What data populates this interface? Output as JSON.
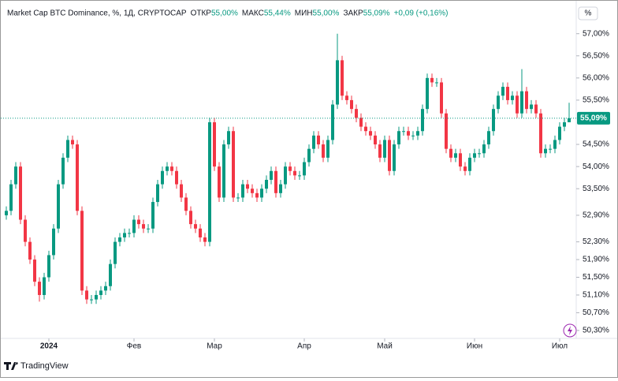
{
  "chart_data": {
    "type": "candlestick",
    "header": {
      "symbol": "Market Cap BTC Dominance, %, 1Д, CRYPTOCAP",
      "open_label": "ОТКР",
      "open_text": "55,00%",
      "high_label": "МАКС",
      "high_text": "55,44%",
      "low_label": "МИН",
      "low_text": "55,00%",
      "close_label": "ЗАКР",
      "close_text": "55,09%",
      "change_text": "+0,09 (+0,16%)"
    },
    "scale_button": "%",
    "brand": "TradingView",
    "last_value_label": "55,09%",
    "up_color": "#089981",
    "down_color": "#f23645",
    "ylim": [
      50.12,
      57.6
    ],
    "yticks": [
      {
        "value": 57,
        "label": "57,00%"
      },
      {
        "value": 56.5,
        "label": "56,50%"
      },
      {
        "value": 56,
        "label": "56,00%"
      },
      {
        "value": 55.5,
        "label": "55,50%"
      },
      {
        "value": 54.5,
        "label": "54,50%"
      },
      {
        "value": 54,
        "label": "54,00%"
      },
      {
        "value": 53.5,
        "label": "53,50%"
      },
      {
        "value": 52.9,
        "label": "52,90%"
      },
      {
        "value": 52.3,
        "label": "52,30%"
      },
      {
        "value": 51.9,
        "label": "51,90%"
      },
      {
        "value": 51.5,
        "label": "51,50%"
      },
      {
        "value": 51.1,
        "label": "51,10%"
      },
      {
        "value": 50.7,
        "label": "50,70%"
      },
      {
        "value": 50.3,
        "label": "50,30%"
      }
    ],
    "xticks": [
      {
        "value": 9,
        "label": "2024"
      },
      {
        "value": 27,
        "label": "Фев"
      },
      {
        "value": 44,
        "label": "Мар"
      },
      {
        "value": 63,
        "label": "Апр"
      },
      {
        "value": 80,
        "label": "Май"
      },
      {
        "value": 99,
        "label": "Июн"
      },
      {
        "value": 117,
        "label": "Июл"
      }
    ],
    "open": [
      52.9,
      53.0,
      53.6,
      54.0,
      52.8,
      52.3,
      51.9,
      51.4,
      51.1,
      51.5,
      52.0,
      52.6,
      53.6,
      54.2,
      54.6,
      54.5,
      53.0,
      51.2,
      51.0,
      51.0,
      51.1,
      51.2,
      51.3,
      51.8,
      52.3,
      52.4,
      52.5,
      52.5,
      52.8,
      52.7,
      52.6,
      52.6,
      53.2,
      53.6,
      53.9,
      54.0,
      53.9,
      53.6,
      53.3,
      53.0,
      52.7,
      52.6,
      52.4,
      52.3,
      55.0,
      54.0,
      53.3,
      54.5,
      54.8,
      53.3,
      53.3,
      53.6,
      53.5,
      53.4,
      53.3,
      53.5,
      53.7,
      53.9,
      53.4,
      53.6,
      54.0,
      53.9,
      53.8,
      53.8,
      54.1,
      54.4,
      54.7,
      54.5,
      54.2,
      54.6,
      55.4,
      56.4,
      55.6,
      55.5,
      55.3,
      55.1,
      54.9,
      54.8,
      54.7,
      54.5,
      54.2,
      54.6,
      53.9,
      54.5,
      54.8,
      54.8,
      54.7,
      54.7,
      54.8,
      55.3,
      56.0,
      55.9,
      55.9,
      55.2,
      54.4,
      54.2,
      54.3,
      54.0,
      53.9,
      54.2,
      54.3,
      54.3,
      54.5,
      54.8,
      55.3,
      55.6,
      55.8,
      55.5,
      55.6,
      55.2,
      55.7,
      55.3,
      55.4,
      55.2,
      54.3,
      54.4,
      54.4,
      54.6,
      54.9,
      55.0
    ],
    "high": [
      53.1,
      53.7,
      54.1,
      54.1,
      52.9,
      52.4,
      52.0,
      51.5,
      51.6,
      52.1,
      52.7,
      53.7,
      54.3,
      54.7,
      54.7,
      54.6,
      53.1,
      51.3,
      51.1,
      51.2,
      51.3,
      51.4,
      51.9,
      52.4,
      52.5,
      52.6,
      52.6,
      52.9,
      52.9,
      52.8,
      52.7,
      53.3,
      53.7,
      54.0,
      54.1,
      54.1,
      54.0,
      53.7,
      53.4,
      53.1,
      52.8,
      52.7,
      52.5,
      55.1,
      55.1,
      54.1,
      54.6,
      54.9,
      54.9,
      53.4,
      53.7,
      53.7,
      53.6,
      53.5,
      53.6,
      53.8,
      54.0,
      54.0,
      53.7,
      54.1,
      54.1,
      54.0,
      53.9,
      54.2,
      54.5,
      54.8,
      54.8,
      54.6,
      54.7,
      55.5,
      57.0,
      56.5,
      55.7,
      55.6,
      55.4,
      55.2,
      55.0,
      54.9,
      54.8,
      54.6,
      54.7,
      54.7,
      54.6,
      54.9,
      54.9,
      54.9,
      54.8,
      54.9,
      55.4,
      56.1,
      56.1,
      56.0,
      56.0,
      55.3,
      54.5,
      54.4,
      54.4,
      54.1,
      54.3,
      54.4,
      54.4,
      54.6,
      54.9,
      55.4,
      55.7,
      55.9,
      55.9,
      55.7,
      55.7,
      56.2,
      55.8,
      55.5,
      55.5,
      55.3,
      54.5,
      54.5,
      54.7,
      55.0,
      55.1,
      55.44
    ],
    "low": [
      52.8,
      52.9,
      53.5,
      52.7,
      52.2,
      51.8,
      51.3,
      50.95,
      51.0,
      51.4,
      51.9,
      52.5,
      53.5,
      54.1,
      54.4,
      52.9,
      51.1,
      50.9,
      50.9,
      50.9,
      51.0,
      51.1,
      51.2,
      51.7,
      52.2,
      52.3,
      52.4,
      52.4,
      52.6,
      52.5,
      52.5,
      52.5,
      53.1,
      53.5,
      53.8,
      53.8,
      53.5,
      53.2,
      52.9,
      52.6,
      52.5,
      52.3,
      52.2,
      52.2,
      53.9,
      53.2,
      53.2,
      54.4,
      53.2,
      53.2,
      53.2,
      53.4,
      53.3,
      53.2,
      53.2,
      53.4,
      53.6,
      53.3,
      53.3,
      53.5,
      53.8,
      53.7,
      53.7,
      53.7,
      54.0,
      54.3,
      54.4,
      54.1,
      54.1,
      54.5,
      55.3,
      55.5,
      55.4,
      55.2,
      55.0,
      54.8,
      54.7,
      54.6,
      54.4,
      54.1,
      54.1,
      53.8,
      53.8,
      54.4,
      54.7,
      54.6,
      54.6,
      54.6,
      54.7,
      55.2,
      55.8,
      55.8,
      55.1,
      54.3,
      54.1,
      54.1,
      53.9,
      53.8,
      53.8,
      54.1,
      54.2,
      54.2,
      54.4,
      54.7,
      55.2,
      55.5,
      55.4,
      55.4,
      55.1,
      55.1,
      55.2,
      55.2,
      55.1,
      54.2,
      54.2,
      54.3,
      54.3,
      54.5,
      54.8,
      55.0
    ],
    "close": [
      53.0,
      53.6,
      54.0,
      52.8,
      52.3,
      51.9,
      51.4,
      51.1,
      51.5,
      52.0,
      52.6,
      53.6,
      54.2,
      54.6,
      54.5,
      53.0,
      51.2,
      51.0,
      51.0,
      51.1,
      51.2,
      51.3,
      51.8,
      52.3,
      52.4,
      52.5,
      52.5,
      52.8,
      52.7,
      52.6,
      52.6,
      53.2,
      53.6,
      53.9,
      54.0,
      53.9,
      53.6,
      53.3,
      53.0,
      52.7,
      52.6,
      52.4,
      52.3,
      55.0,
      54.0,
      53.3,
      54.5,
      54.8,
      53.3,
      53.3,
      53.6,
      53.5,
      53.4,
      53.3,
      53.5,
      53.7,
      53.9,
      53.4,
      53.6,
      54.0,
      53.9,
      53.8,
      53.8,
      54.1,
      54.4,
      54.7,
      54.5,
      54.2,
      54.6,
      55.4,
      56.4,
      55.6,
      55.5,
      55.3,
      55.1,
      54.9,
      54.8,
      54.7,
      54.5,
      54.2,
      54.6,
      53.9,
      54.5,
      54.8,
      54.8,
      54.7,
      54.7,
      54.8,
      55.3,
      56.0,
      55.9,
      55.9,
      55.2,
      54.4,
      54.2,
      54.3,
      54.0,
      53.9,
      54.2,
      54.3,
      54.3,
      54.5,
      54.8,
      55.3,
      55.6,
      55.8,
      55.5,
      55.6,
      55.2,
      55.7,
      55.3,
      55.4,
      55.2,
      54.3,
      54.4,
      54.4,
      54.6,
      54.9,
      55.0,
      55.09
    ]
  }
}
